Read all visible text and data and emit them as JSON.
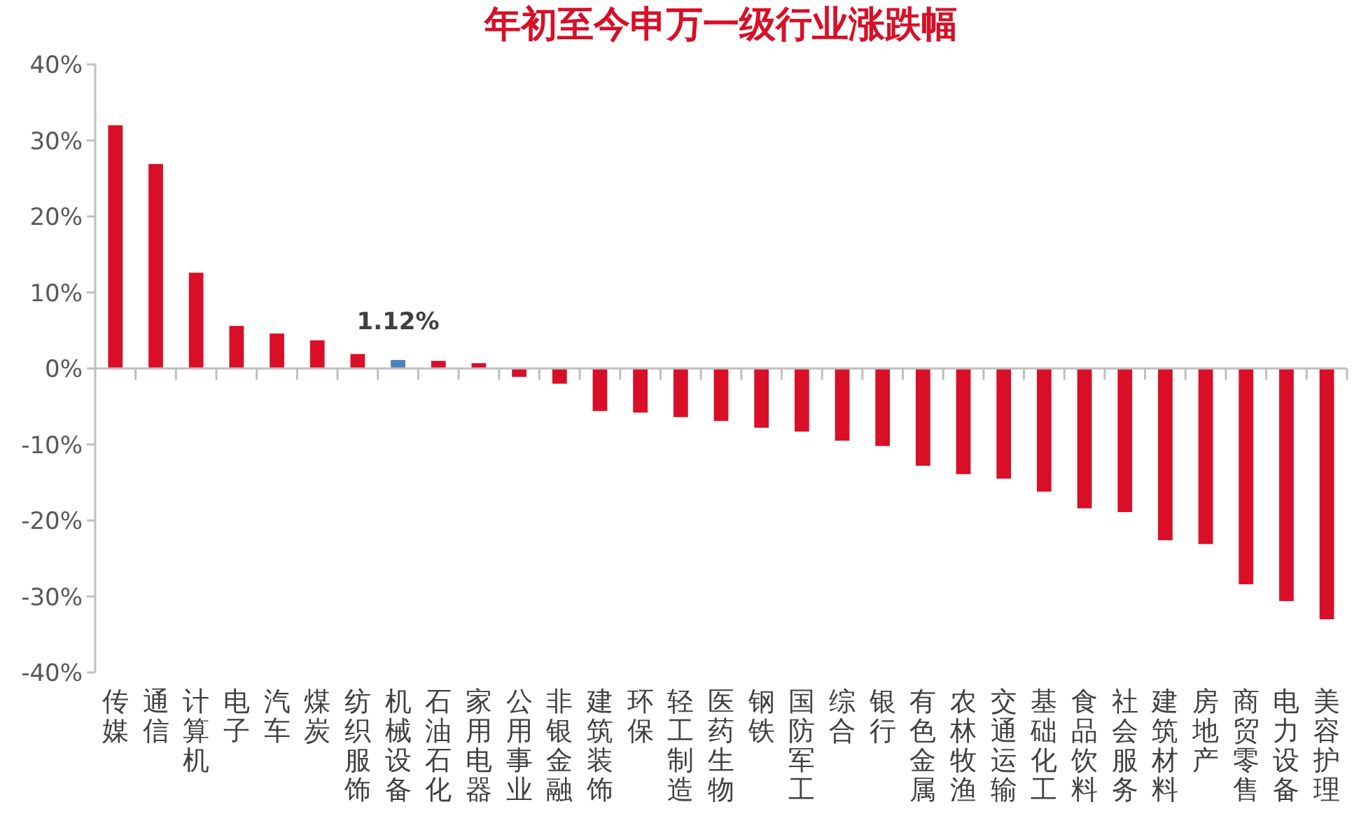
{
  "chart_data": {
    "type": "bar",
    "title": "年初至今申万一级行业涨跌幅",
    "categories": [
      "传媒",
      "通信",
      "计算机",
      "电子",
      "汽车",
      "煤炭",
      "纺织服饰",
      "机械设备",
      "石油石化",
      "家用电器",
      "公用事业",
      "非银金融",
      "建筑装饰",
      "环保",
      "轻工制造",
      "医药生物",
      "钢铁",
      "国防军工",
      "综合",
      "银行",
      "有色金属",
      "农林牧渔",
      "交通运输",
      "基础化工",
      "食品饮料",
      "社会服务",
      "建筑材料",
      "房地产",
      "商贸零售",
      "电力设备",
      "美容护理"
    ],
    "values": [
      32.0,
      26.9,
      12.6,
      5.6,
      4.6,
      3.7,
      1.9,
      1.12,
      1.0,
      0.7,
      -1.1,
      -2.0,
      -5.6,
      -5.8,
      -6.4,
      -6.9,
      -7.8,
      -8.3,
      -9.5,
      -10.2,
      -12.8,
      -13.9,
      -14.5,
      -16.2,
      -18.4,
      -18.9,
      -22.6,
      -23.1,
      -28.4,
      -30.6,
      -33.0
    ],
    "colors": [
      "#d80f27",
      "#d80f27",
      "#d80f27",
      "#d80f27",
      "#d80f27",
      "#d80f27",
      "#d80f27",
      "#4f81bd",
      "#d80f27",
      "#d80f27",
      "#d80f27",
      "#d80f27",
      "#d80f27",
      "#d80f27",
      "#d80f27",
      "#d80f27",
      "#d80f27",
      "#d80f27",
      "#d80f27",
      "#d80f27",
      "#d80f27",
      "#d80f27",
      "#d80f27",
      "#d80f27",
      "#d80f27",
      "#d80f27",
      "#d80f27",
      "#d80f27",
      "#d80f27",
      "#d80f27",
      "#d80f27"
    ],
    "value_labels": [
      null,
      null,
      null,
      null,
      null,
      null,
      null,
      "1.12%",
      null,
      null,
      null,
      null,
      null,
      null,
      null,
      null,
      null,
      null,
      null,
      null,
      null,
      null,
      null,
      null,
      null,
      null,
      null,
      null,
      null,
      null,
      null
    ],
    "ylim": [
      -40,
      40
    ],
    "yticks": [
      {
        "value": -40,
        "label": "-40%"
      },
      {
        "value": -30,
        "label": "-30%"
      },
      {
        "value": -20,
        "label": "-20%"
      },
      {
        "value": -10,
        "label": "-10%"
      },
      {
        "value": 0,
        "label": "0%"
      },
      {
        "value": 10,
        "label": "10%"
      },
      {
        "value": 20,
        "label": "20%"
      },
      {
        "value": 30,
        "label": "30%"
      },
      {
        "value": 40,
        "label": "40%"
      }
    ],
    "data_labels": false
  }
}
